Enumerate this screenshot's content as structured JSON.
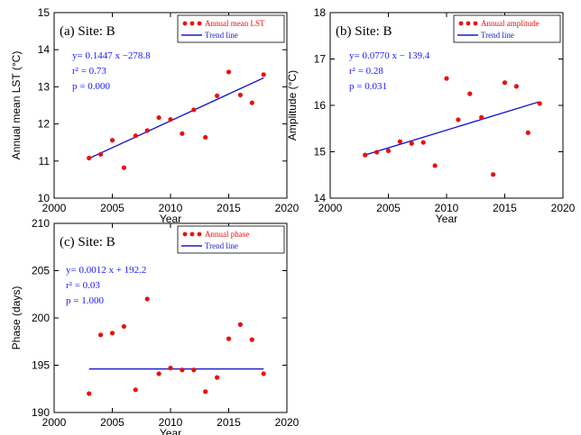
{
  "chart_data": [
    {
      "type": "scatter",
      "title": "(a) Site: B",
      "xlabel": "Year",
      "ylabel": "Annual mean LST (°C)",
      "xlim": [
        2000,
        2020
      ],
      "ylim": [
        10,
        15
      ],
      "xticks": [
        "2000",
        "2005",
        "2010",
        "2015",
        "2020"
      ],
      "yticks": [
        "10",
        "11",
        "12",
        "13",
        "14",
        "15"
      ],
      "series": [
        {
          "name": "Annual mean LST",
          "color": "#e81010",
          "points": [
            [
              2003,
              11.08
            ],
            [
              2004,
              11.18
            ],
            [
              2005,
              11.56
            ],
            [
              2006,
              10.82
            ],
            [
              2007,
              11.68
            ],
            [
              2008,
              11.82
            ],
            [
              2009,
              12.17
            ],
            [
              2010,
              12.12
            ],
            [
              2011,
              11.74
            ],
            [
              2012,
              12.38
            ],
            [
              2013,
              11.64
            ],
            [
              2014,
              12.76
            ],
            [
              2015,
              13.4
            ],
            [
              2016,
              12.78
            ],
            [
              2017,
              12.57
            ],
            [
              2018,
              13.33
            ]
          ]
        },
        {
          "name": "Trend line",
          "color": "#1a1acc",
          "line": [
            [
              2003,
              11.07
            ],
            [
              2018,
              13.24
            ]
          ]
        }
      ],
      "annotations": [
        "y= 0.1447 x −278.8",
        "r² = 0.73",
        "p = 0.000"
      ]
    },
    {
      "type": "scatter",
      "title": "(b) Site: B",
      "xlabel": "Year",
      "ylabel": "Amplitude (°C)",
      "xlim": [
        2000,
        2020
      ],
      "ylim": [
        14,
        18
      ],
      "xticks": [
        "2000",
        "2005",
        "2010",
        "2015",
        "2020"
      ],
      "yticks": [
        "14",
        "15",
        "16",
        "17",
        "18"
      ],
      "series": [
        {
          "name": "Annual amplitude",
          "color": "#e81010",
          "points": [
            [
              2003,
              14.93
            ],
            [
              2004,
              14.99
            ],
            [
              2005,
              15.02
            ],
            [
              2006,
              15.22
            ],
            [
              2007,
              15.18
            ],
            [
              2008,
              15.2
            ],
            [
              2009,
              14.7
            ],
            [
              2010,
              16.58
            ],
            [
              2011,
              15.69
            ],
            [
              2012,
              16.25
            ],
            [
              2013,
              15.74
            ],
            [
              2014,
              14.51
            ],
            [
              2015,
              16.49
            ],
            [
              2016,
              16.41
            ],
            [
              2017,
              15.41
            ],
            [
              2018,
              16.04
            ]
          ]
        },
        {
          "name": "Trend line",
          "color": "#1a1acc",
          "line": [
            [
              2003,
              14.93
            ],
            [
              2018,
              16.08
            ]
          ]
        }
      ],
      "annotations": [
        "y= 0.0770 x − 139.4",
        "r² = 0.28",
        "p = 0.031"
      ]
    },
    {
      "type": "scatter",
      "title": "(c) Site: B",
      "xlabel": "Year",
      "ylabel": "Phase (days)",
      "xlim": [
        2000,
        2020
      ],
      "ylim": [
        190,
        210
      ],
      "xticks": [
        "2000",
        "2005",
        "2010",
        "2015",
        "2020"
      ],
      "yticks": [
        "190",
        "195",
        "200",
        "205",
        "210"
      ],
      "series": [
        {
          "name": "Annual phase",
          "color": "#e81010",
          "points": [
            [
              2003,
              192.0
            ],
            [
              2004,
              198.2
            ],
            [
              2005,
              198.4
            ],
            [
              2006,
              199.1
            ],
            [
              2007,
              192.4
            ],
            [
              2008,
              202.0
            ],
            [
              2009,
              194.1
            ],
            [
              2010,
              194.7
            ],
            [
              2011,
              194.5
            ],
            [
              2012,
              194.5
            ],
            [
              2013,
              192.2
            ],
            [
              2014,
              193.7
            ],
            [
              2015,
              197.8
            ],
            [
              2016,
              199.3
            ],
            [
              2017,
              197.7
            ],
            [
              2018,
              194.1
            ]
          ]
        },
        {
          "name": "Trend line",
          "color": "#1a1acc",
          "line": [
            [
              2003,
              194.6
            ],
            [
              2018,
              194.6
            ]
          ]
        }
      ],
      "annotations": [
        "y= 0.0012 x + 192.2",
        "r² = 0.03",
        "p = 1.000"
      ]
    }
  ]
}
